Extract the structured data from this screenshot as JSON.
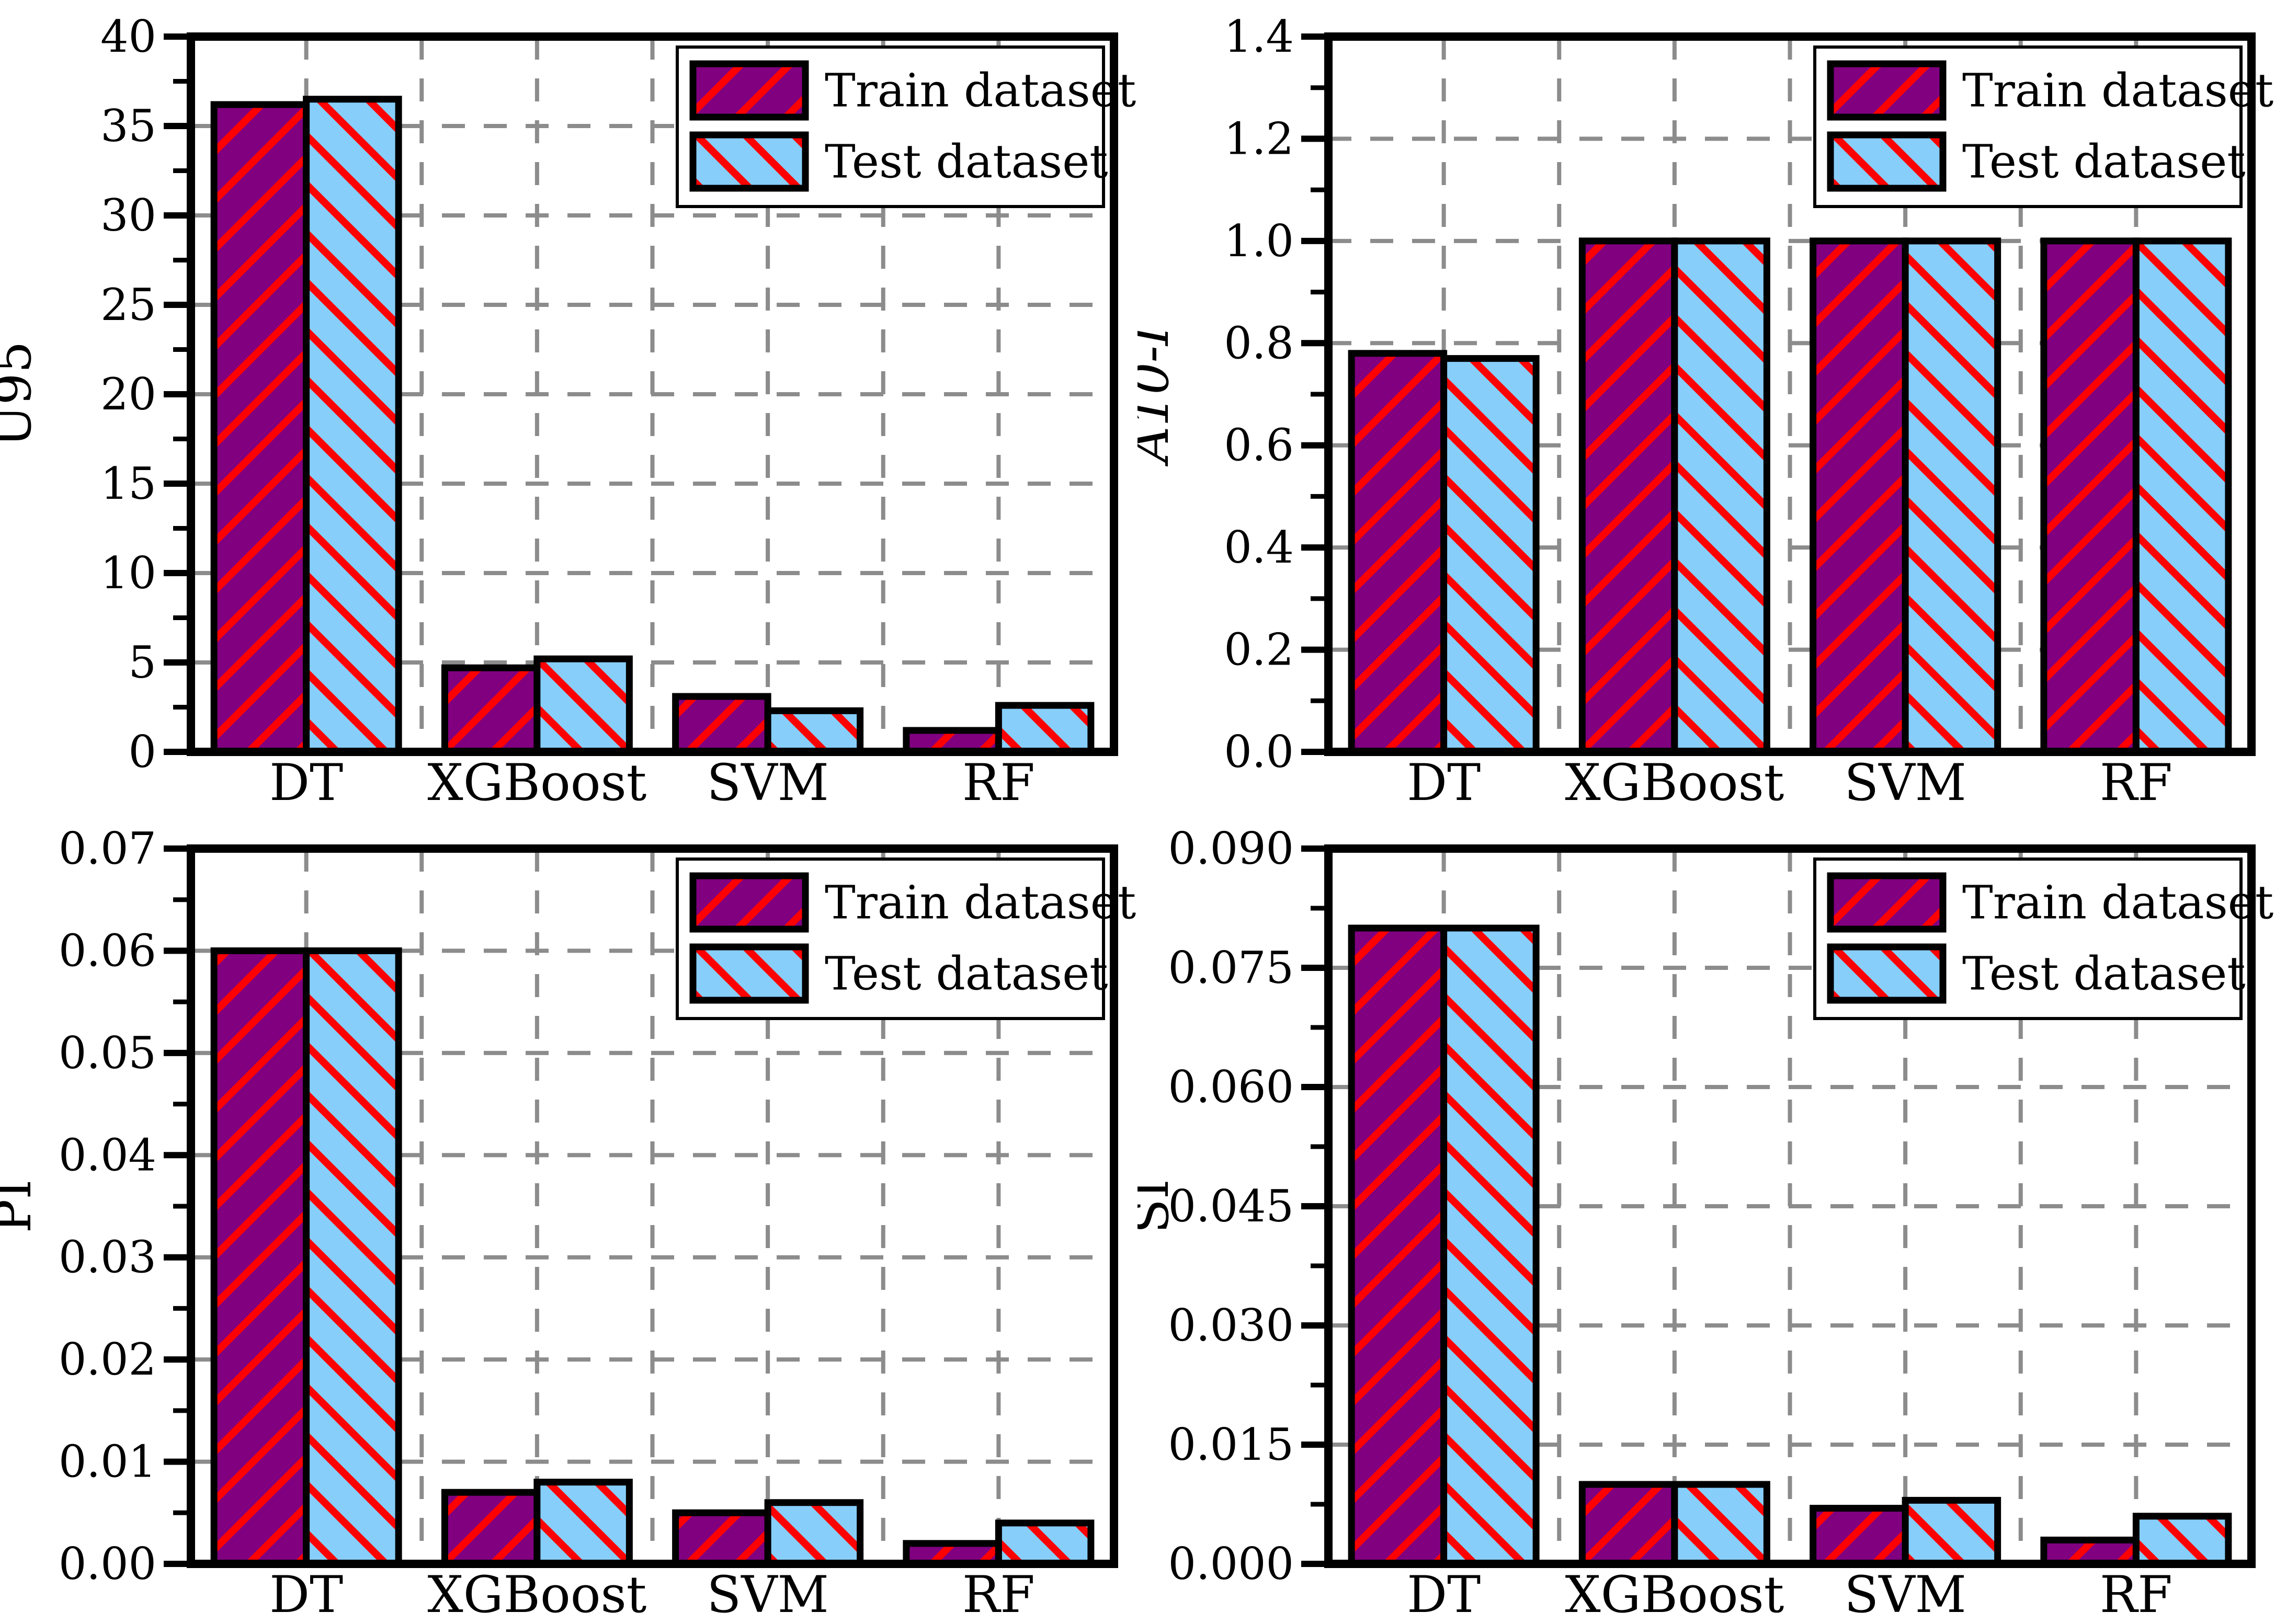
{
  "figure_name": "model-metrics-comparison",
  "legend": {
    "train_label": "Train dataset",
    "test_label": "Test dataset"
  },
  "colors": {
    "train_fill": "#800080",
    "test_fill": "#87CEFA",
    "hatch_line": "#FF0000",
    "bar_outline": "#000000",
    "frame": "#000000",
    "grid": "#8C8C8C",
    "legend_bg": "#FFFFFF",
    "text": "#000000"
  },
  "chart_data": [
    {
      "type": "bar",
      "title": "",
      "xlabel": "",
      "ylabel": "U95",
      "ylabel_italic": false,
      "categories": [
        "DT",
        "XGBoost",
        "SVM",
        "RF"
      ],
      "series": [
        {
          "name": "Train dataset",
          "hatch": "/",
          "values": [
            36.2,
            4.7,
            3.1,
            1.2
          ]
        },
        {
          "name": "Test dataset",
          "hatch": "\\",
          "values": [
            36.5,
            5.2,
            2.3,
            2.6
          ]
        }
      ],
      "ylim": [
        0,
        40
      ],
      "ytick_step": 5,
      "ytick_decimals": 0,
      "grid": true,
      "legend_position": "top-right",
      "legend_visible": true
    },
    {
      "type": "bar",
      "title": "",
      "xlabel": "",
      "ylabel": "A10-I",
      "ylabel_italic": true,
      "categories": [
        "DT",
        "XGBoost",
        "SVM",
        "RF"
      ],
      "series": [
        {
          "name": "Train dataset",
          "hatch": "/",
          "values": [
            0.78,
            1.0,
            1.0,
            1.0
          ]
        },
        {
          "name": "Test dataset",
          "hatch": "\\",
          "values": [
            0.77,
            1.0,
            1.0,
            1.0
          ]
        }
      ],
      "ylim": [
        0,
        1.4
      ],
      "ytick_step": 0.2,
      "ytick_decimals": 1,
      "grid": true,
      "legend_position": "top-right",
      "legend_visible": true
    },
    {
      "type": "bar",
      "title": "",
      "xlabel": "",
      "ylabel": "PI",
      "ylabel_italic": false,
      "categories": [
        "DT",
        "XGBoost",
        "SVM",
        "RF"
      ],
      "series": [
        {
          "name": "Train dataset",
          "hatch": "/",
          "values": [
            0.06,
            0.007,
            0.005,
            0.002
          ]
        },
        {
          "name": "Test dataset",
          "hatch": "\\",
          "values": [
            0.06,
            0.008,
            0.006,
            0.004
          ]
        }
      ],
      "ylim": [
        0,
        0.07
      ],
      "ytick_step": 0.01,
      "ytick_decimals": 2,
      "grid": true,
      "legend_position": "top-right",
      "legend_visible": true
    },
    {
      "type": "bar",
      "title": "",
      "xlabel": "",
      "ylabel": "SI",
      "ylabel_italic": false,
      "categories": [
        "DT",
        "XGBoost",
        "SVM",
        "RF"
      ],
      "series": [
        {
          "name": "Train dataset",
          "hatch": "/",
          "values": [
            0.08,
            0.01,
            0.007,
            0.003
          ]
        },
        {
          "name": "Test dataset",
          "hatch": "\\",
          "values": [
            0.08,
            0.01,
            0.008,
            0.006
          ]
        }
      ],
      "ylim": [
        0,
        0.09
      ],
      "ytick_step": 0.015,
      "ytick_decimals": 3,
      "grid": true,
      "legend_position": "top-right",
      "legend_visible": true
    }
  ]
}
